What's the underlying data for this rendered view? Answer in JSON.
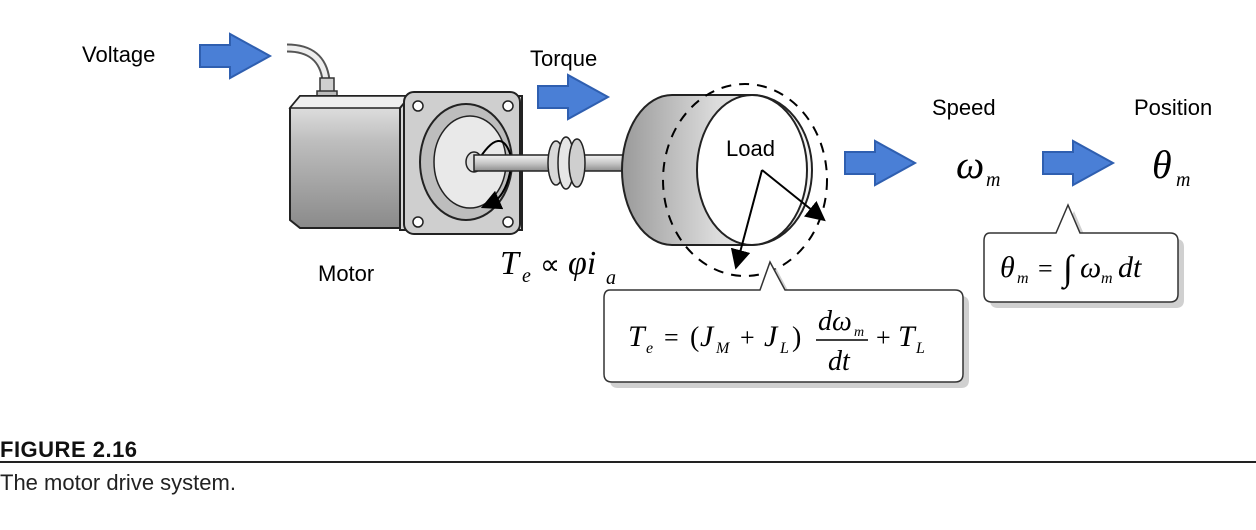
{
  "labels": {
    "voltage": "Voltage",
    "torque": "Torque",
    "speed": "Speed",
    "position": "Position",
    "load": "Load",
    "motor": "Motor"
  },
  "equations": {
    "torque_relation": "Te ∝ φ ia",
    "speed_symbol": "ωm",
    "position_symbol": "θm",
    "integral": "θm = ∫ ωm dt",
    "dynamics": "Te = (JM + JL) dωm/dt + TL"
  },
  "caption": {
    "title": "FIGURE 2.16",
    "text": "The motor drive system."
  },
  "colors": {
    "arrow_fill": "#4a7fd6",
    "arrow_stroke": "#2f5fb0",
    "motor_gray": "#bdbdbd"
  }
}
